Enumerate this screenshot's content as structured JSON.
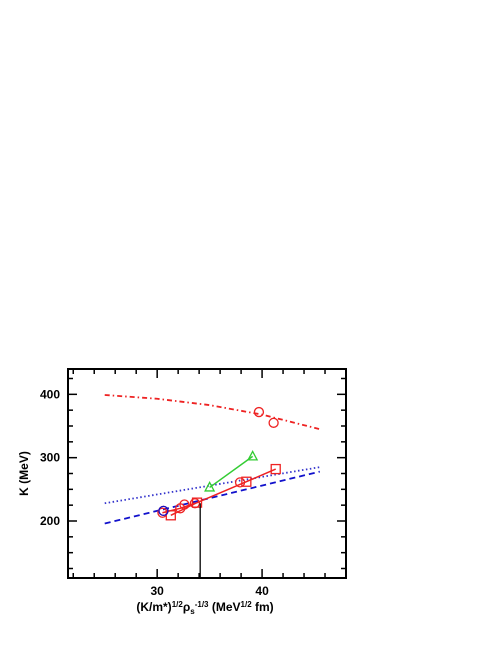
{
  "chart_data": {
    "type": "line",
    "title": "",
    "xlabel": {
      "parts": [
        {
          "text": "(K/m*)",
          "style": "normal"
        },
        {
          "text": "1/2",
          "style": "sup"
        },
        {
          "text": "ρ",
          "style": "normal"
        },
        {
          "text": "s",
          "style": "sub"
        },
        {
          "text": "-1/3",
          "style": "sup"
        },
        {
          "text": " (MeV",
          "style": "normal"
        },
        {
          "text": "1/2",
          "style": "sup"
        },
        {
          "text": " fm)",
          "style": "normal"
        }
      ]
    },
    "ylabel": "K (MeV)",
    "xlim": [
      21.5,
      48
    ],
    "ylim": [
      110,
      440
    ],
    "xticks": [
      30,
      40
    ],
    "xtick_labels": [
      "30",
      "40"
    ],
    "xminor_step": 2,
    "yticks": [
      200,
      300,
      400
    ],
    "ytick_labels": [
      "200",
      "300",
      "400"
    ],
    "yminor_step": 25,
    "grid": false,
    "legend": "none",
    "series": [
      {
        "style": "dashdot",
        "color": "#ee2222",
        "x": [
          25,
          30,
          35,
          40,
          45.5
        ],
        "y": [
          399,
          393,
          383,
          368,
          345
        ]
      },
      {
        "style": "dotted",
        "color": "#3333cc",
        "x": [
          25,
          45.5
        ],
        "y": [
          228,
          285
        ]
      },
      {
        "style": "dashed",
        "color": "#1111cc",
        "x": [
          25,
          45.5
        ],
        "y": [
          196,
          278
        ]
      },
      {
        "style": "solid",
        "color": "#ee2222",
        "marker": "square",
        "x": [
          31.3,
          33.8,
          38.5,
          41.3
        ],
        "y": [
          209,
          229,
          262,
          282
        ]
      },
      {
        "style": "solid",
        "color": "#33cc33",
        "marker": "triangle",
        "x": [
          35,
          39.1
        ],
        "y": [
          253,
          302
        ]
      },
      {
        "style": "solid",
        "color": "#ee2222",
        "marker": "circle",
        "x": [
          30.5,
          32.2,
          33.6
        ],
        "y": [
          213,
          220,
          228
        ]
      },
      {
        "style": "none",
        "color": "#ee2222",
        "marker": "circle",
        "x": [
          30.6,
          32.6,
          37.9,
          39.7,
          41.1
        ],
        "y": [
          216,
          226,
          261,
          372,
          355
        ]
      },
      {
        "style": "none",
        "color": "#1111cc",
        "marker": "circle",
        "x": [
          30.6
        ],
        "y": [
          216
        ]
      }
    ],
    "reference_line": {
      "x": 34.1,
      "y_from": 110,
      "y_to": 228,
      "color": "#000000"
    }
  }
}
